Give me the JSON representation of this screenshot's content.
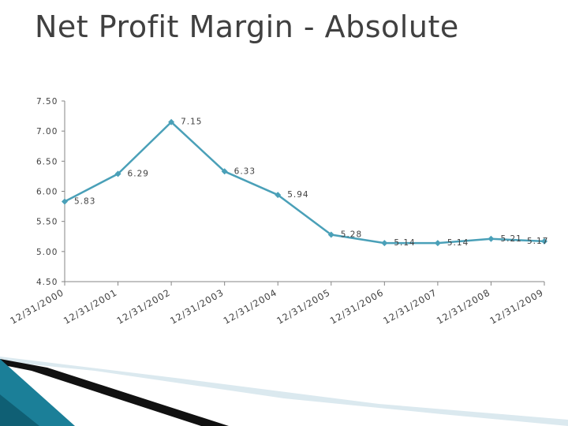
{
  "slide": {
    "title": "Net Profit Margin - Absolute"
  },
  "chart_data": {
    "type": "line",
    "title": "",
    "xlabel": "",
    "ylabel": "",
    "x": [
      "12/31/2000",
      "12/31/2001",
      "12/31/2002",
      "12/31/2003",
      "12/31/2004",
      "12/31/2005",
      "12/31/2006",
      "12/31/2007",
      "12/31/2008",
      "12/31/2009"
    ],
    "series": [
      {
        "values": [
          5.83,
          6.29,
          7.15,
          6.33,
          5.94,
          5.28,
          5.14,
          5.14,
          5.21,
          5.17
        ],
        "labels": [
          "5.83",
          "6.29",
          "7.15",
          "6.33",
          "5.94",
          "5.28",
          "5.14",
          "5.14",
          "5.21",
          "5.17"
        ]
      }
    ],
    "yticks": [
      "7.50",
      "7.00",
      "6.50",
      "6.00",
      "5.50",
      "5.00",
      "4.50"
    ],
    "ylim": [
      4.5,
      7.5
    ],
    "grid": false,
    "legend": "none",
    "line_color": "#4aa0b8"
  }
}
